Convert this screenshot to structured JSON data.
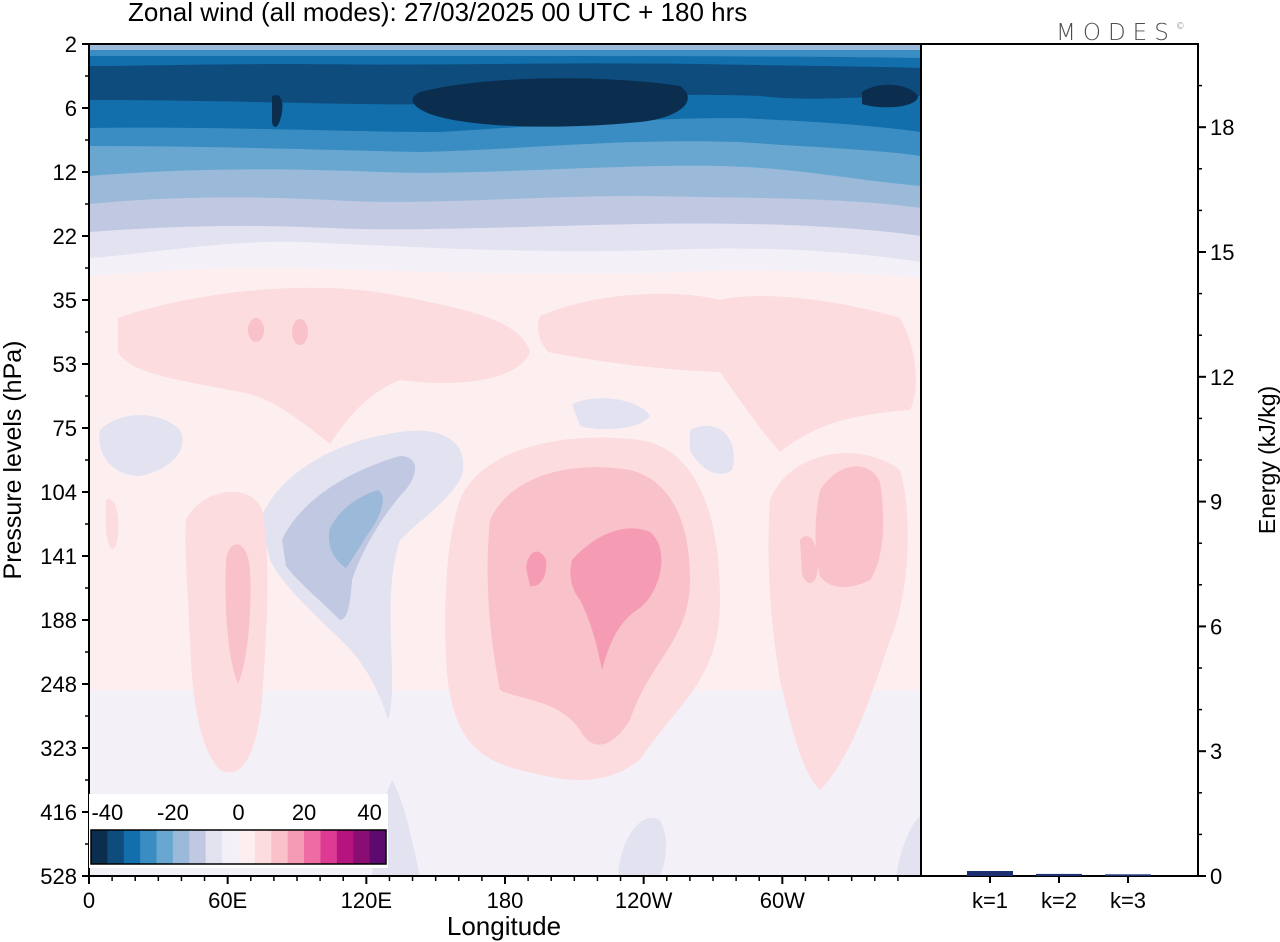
{
  "header": {
    "title": "Zonal wind (all modes):  27/03/2025  00 UTC  + 180 hrs",
    "logo_text": "MODES",
    "logo_mark": "©"
  },
  "chart_data": [
    {
      "type": "heatmap",
      "title": "Zonal wind (all modes):  27/03/2025  00 UTC  + 180 hrs",
      "xlabel": "Longitude",
      "ylabel": "Pressure levels (hPa)",
      "x_ticks": [
        "0",
        "60E",
        "120E",
        "180",
        "120W",
        "60W"
      ],
      "y_ticks": [
        "2",
        "6",
        "12",
        "22",
        "35",
        "53",
        "75",
        "104",
        "141",
        "188",
        "248",
        "323",
        "416",
        "528"
      ],
      "y_reversed": true,
      "colorbar": {
        "ticks": [
          "-40",
          "-20",
          "0",
          "20",
          "40"
        ],
        "range": [
          -45,
          45
        ],
        "step": 5,
        "colors": [
          "#0b2e4f",
          "#0e4c7e",
          "#126fab",
          "#3a8dc2",
          "#6aa7d0",
          "#9bbad9",
          "#c1c8e1",
          "#e2e2f1",
          "#f3f0f8",
          "#fdeff0",
          "#fcdcdf",
          "#f9c1c9",
          "#f59cb4",
          "#ee6ba3",
          "#dd3b93",
          "#b5147f",
          "#8a0d73",
          "#5c0a6e"
        ],
        "placement": "bottom-left"
      },
      "grid": false
    },
    {
      "type": "bar",
      "title": "",
      "xlabel": "",
      "ylabel": "Energy (kJ/kg)",
      "categories": [
        "k=1",
        "k=2",
        "k=3"
      ],
      "values": [
        0.12,
        0.05,
        0.04
      ],
      "ylim": [
        0,
        20
      ],
      "y_ticks": [
        0,
        3,
        6,
        9,
        12,
        15,
        18
      ],
      "y_minor_step": 1,
      "bar_color": "#1c2f70",
      "grid": false
    }
  ]
}
